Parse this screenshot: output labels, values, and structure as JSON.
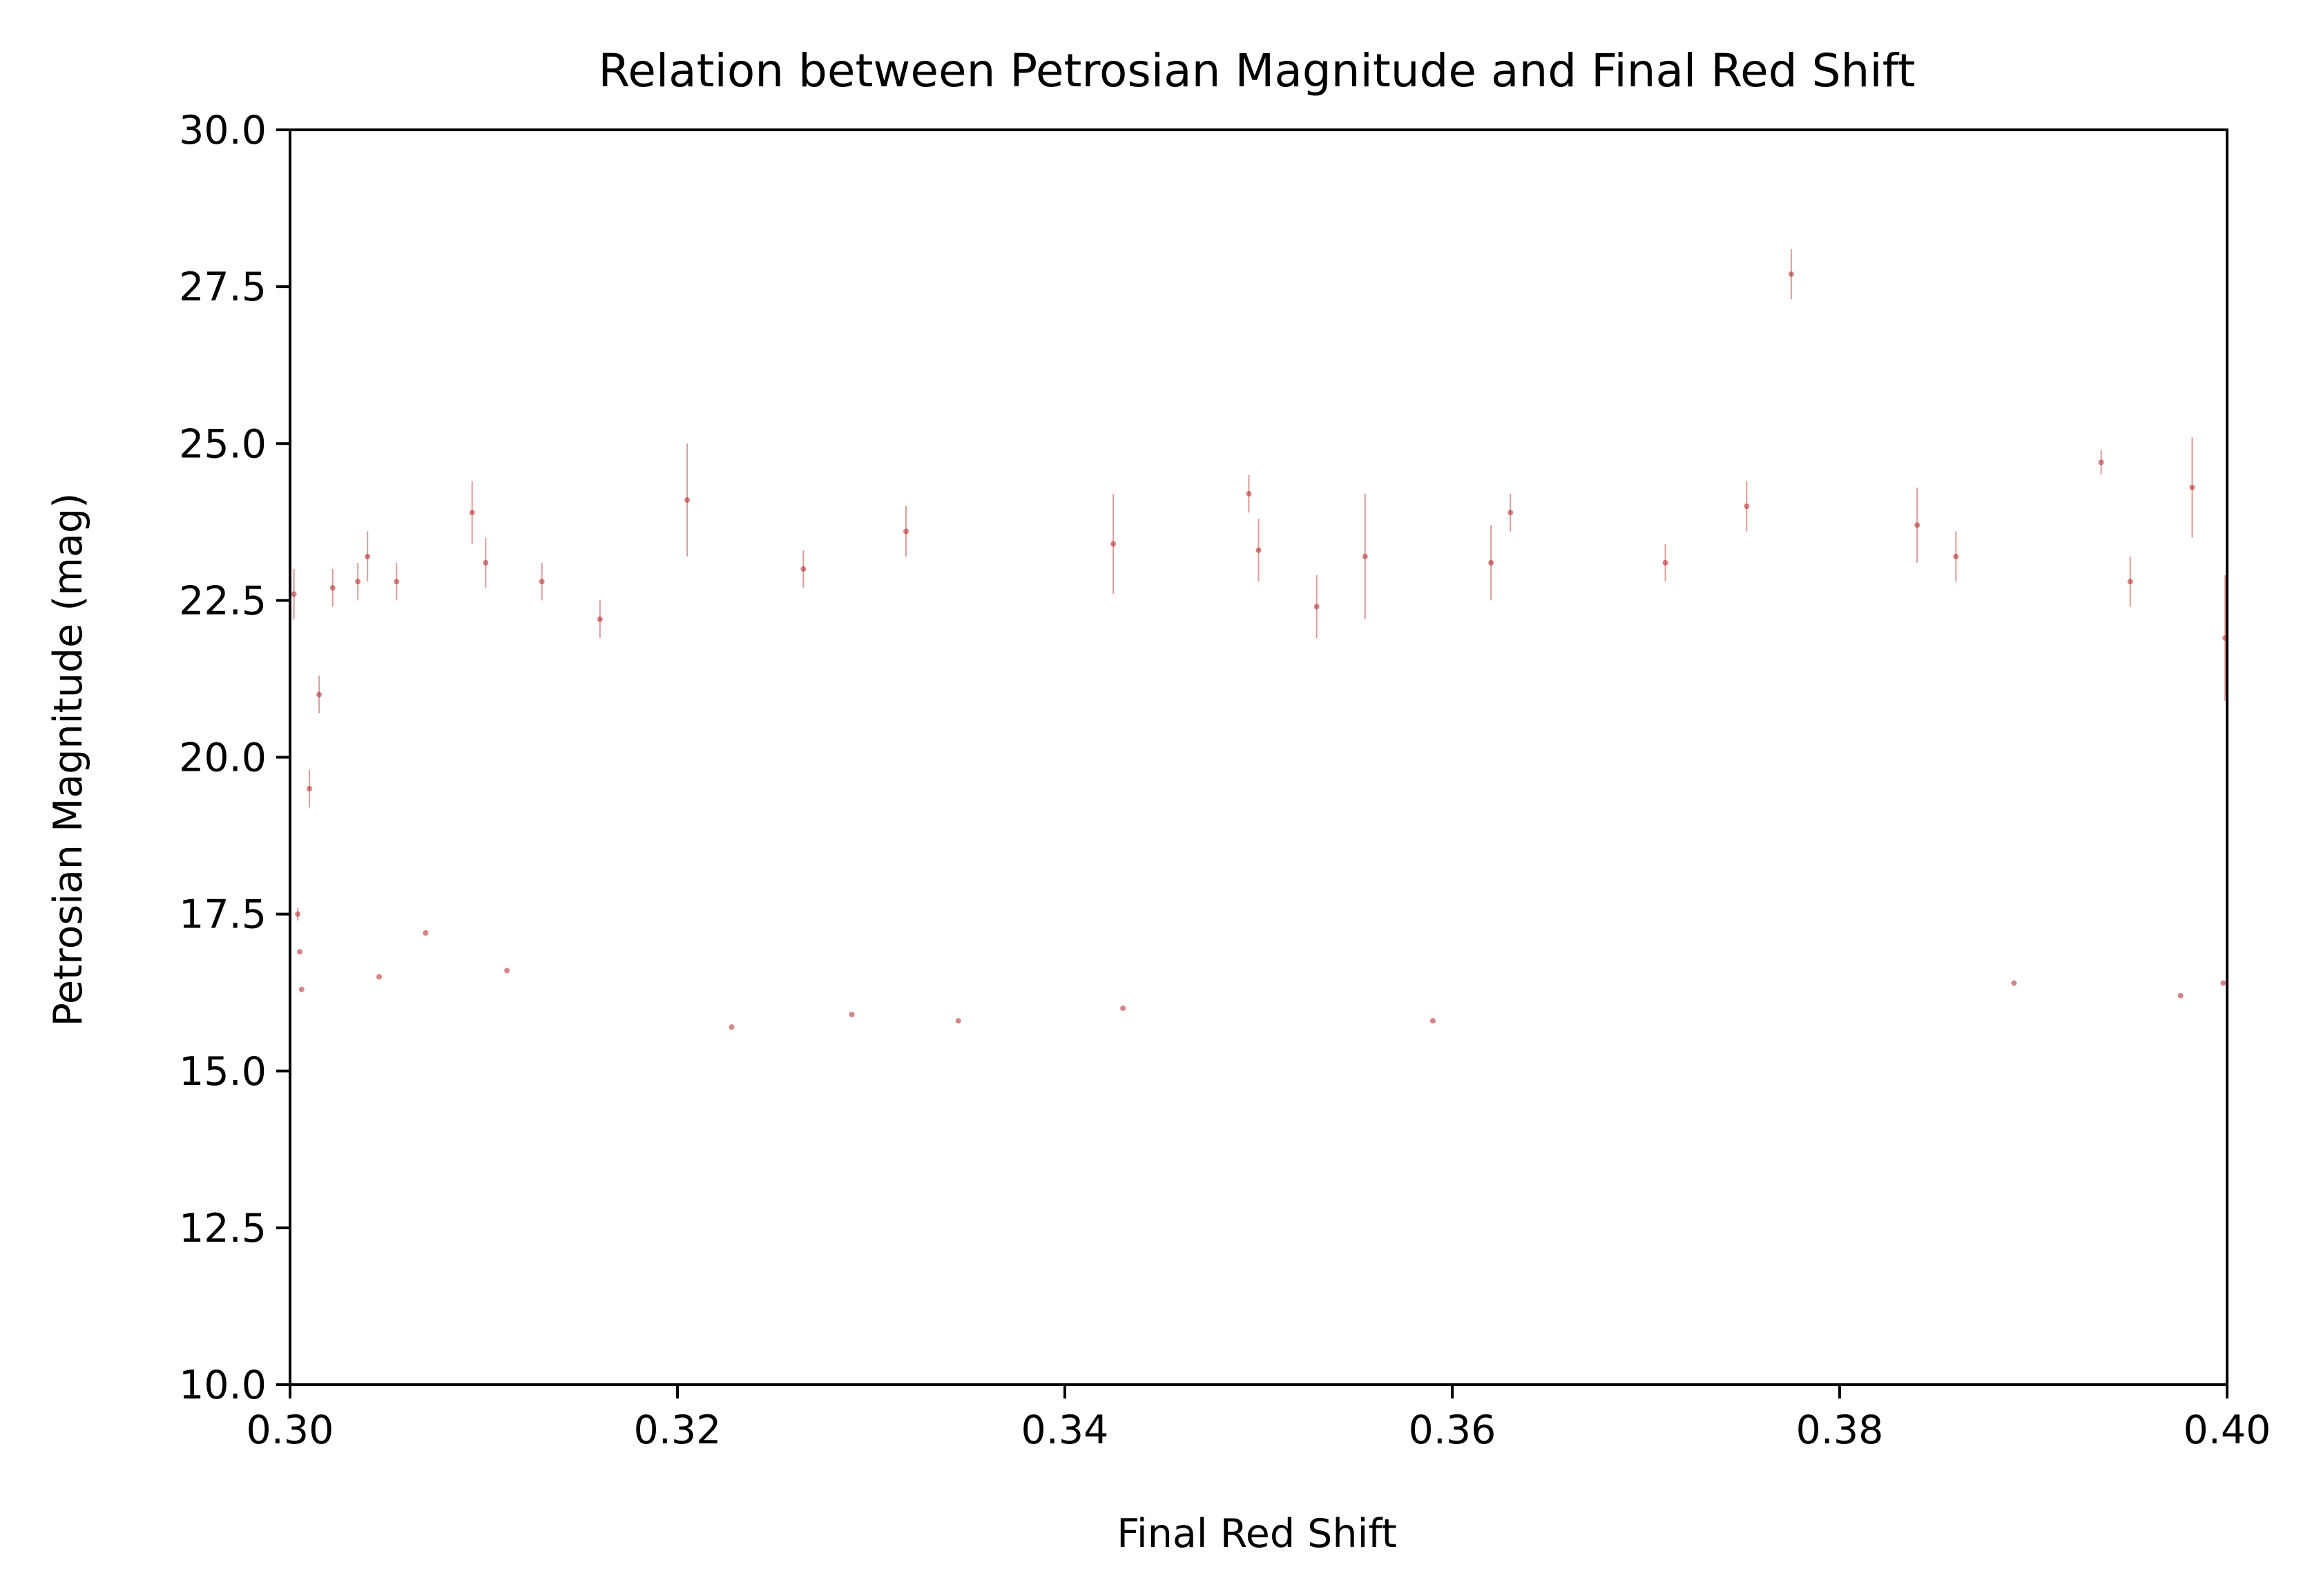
{
  "chart_data": {
    "type": "scatter",
    "title": "Relation between Petrosian Magnitude and Final Red Shift",
    "xlabel": "Final Red Shift",
    "ylabel": "Petrosian Magnitude (mag)",
    "xlim": [
      0.3,
      0.4
    ],
    "ylim": [
      10.0,
      30.0
    ],
    "x_ticks": [
      "0.30",
      "0.32",
      "0.34",
      "0.36",
      "0.38",
      "0.40"
    ],
    "y_ticks": [
      "10.0",
      "12.5",
      "15.0",
      "17.5",
      "20.0",
      "22.5",
      "25.0",
      "27.5",
      "30.0"
    ],
    "grid": false,
    "legend": "none",
    "marker_color": "#b22222",
    "error_bars": true,
    "series": [
      {
        "points": [
          {
            "x": 0.3002,
            "y": 22.6,
            "err": 0.4
          },
          {
            "x": 0.3004,
            "y": 17.5,
            "err": 0.1
          },
          {
            "x": 0.3005,
            "y": 16.9,
            "err": 0.05
          },
          {
            "x": 0.3006,
            "y": 16.3,
            "err": 0.05
          },
          {
            "x": 0.301,
            "y": 19.5,
            "err": 0.3
          },
          {
            "x": 0.3015,
            "y": 21.0,
            "err": 0.3
          },
          {
            "x": 0.3022,
            "y": 22.7,
            "err": 0.3
          },
          {
            "x": 0.3035,
            "y": 22.8,
            "err": 0.3
          },
          {
            "x": 0.304,
            "y": 23.2,
            "err": 0.4
          },
          {
            "x": 0.3046,
            "y": 16.5,
            "err": 0.05
          },
          {
            "x": 0.3055,
            "y": 22.8,
            "err": 0.3
          },
          {
            "x": 0.307,
            "y": 17.2,
            "err": 0.05
          },
          {
            "x": 0.3094,
            "y": 23.9,
            "err": 0.5
          },
          {
            "x": 0.3101,
            "y": 23.1,
            "err": 0.4
          },
          {
            "x": 0.3112,
            "y": 16.6,
            "err": 0.05
          },
          {
            "x": 0.313,
            "y": 22.8,
            "err": 0.3
          },
          {
            "x": 0.316,
            "y": 22.2,
            "err": 0.3
          },
          {
            "x": 0.3205,
            "y": 24.1,
            "err": 0.9
          },
          {
            "x": 0.3228,
            "y": 15.7,
            "err": 0.05
          },
          {
            "x": 0.3265,
            "y": 23.0,
            "err": 0.3
          },
          {
            "x": 0.329,
            "y": 15.9,
            "err": 0.05
          },
          {
            "x": 0.3318,
            "y": 23.6,
            "err": 0.4
          },
          {
            "x": 0.3345,
            "y": 15.8,
            "err": 0.05
          },
          {
            "x": 0.3425,
            "y": 23.4,
            "err": 0.8
          },
          {
            "x": 0.343,
            "y": 16.0,
            "err": 0.05
          },
          {
            "x": 0.3495,
            "y": 24.2,
            "err": 0.3
          },
          {
            "x": 0.35,
            "y": 23.3,
            "err": 0.5
          },
          {
            "x": 0.353,
            "y": 22.4,
            "err": 0.5
          },
          {
            "x": 0.3555,
            "y": 23.2,
            "err": 1.0
          },
          {
            "x": 0.359,
            "y": 15.8,
            "err": 0.05
          },
          {
            "x": 0.362,
            "y": 23.1,
            "err": 0.6
          },
          {
            "x": 0.363,
            "y": 23.9,
            "err": 0.3
          },
          {
            "x": 0.371,
            "y": 23.1,
            "err": 0.3
          },
          {
            "x": 0.3752,
            "y": 24.0,
            "err": 0.4
          },
          {
            "x": 0.3775,
            "y": 27.7,
            "err": 0.4
          },
          {
            "x": 0.384,
            "y": 23.7,
            "err": 0.6
          },
          {
            "x": 0.386,
            "y": 23.2,
            "err": 0.4
          },
          {
            "x": 0.389,
            "y": 16.4,
            "err": 0.05
          },
          {
            "x": 0.3935,
            "y": 24.7,
            "err": 0.2
          },
          {
            "x": 0.395,
            "y": 22.8,
            "err": 0.4
          },
          {
            "x": 0.3976,
            "y": 16.2,
            "err": 0.05
          },
          {
            "x": 0.3982,
            "y": 24.3,
            "err": 0.8
          },
          {
            "x": 0.3998,
            "y": 16.4,
            "err": 0.05
          },
          {
            "x": 0.3999,
            "y": 21.9,
            "err": 1.0
          }
        ]
      }
    ]
  }
}
